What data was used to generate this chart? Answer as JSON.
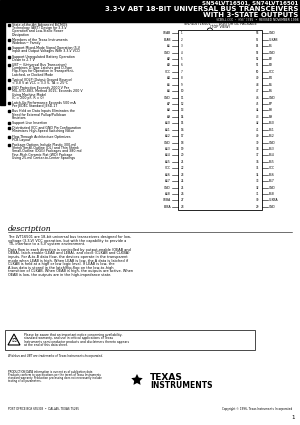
{
  "title_line1": "SN54LVT16501, SN74LVT16501",
  "title_line2": "3.3-V ABT 18-BIT UNIVERSAL BUS TRANSCEIVERS",
  "title_line3": "WITH 3-STATE OUTPUTS",
  "subtitle_small": "SCBS-LXXX  •  MAY 1995  •  REVISED NOVEMBER 1998",
  "pkg_line1": "SN54LVT16501 . . . WD PACKAGE",
  "pkg_line2": "SN74LVT16501 . . . DGG OR DL PACKAGE",
  "pkg_line3": "(TOP VIEW)",
  "left_pins": [
    "OEAB",
    "LEAB",
    "A1",
    "GND",
    "A2",
    "A3",
    "VCC",
    "A4",
    "A5",
    "A6",
    "GND",
    "A7",
    "A8",
    "A9",
    "A10",
    "A11",
    "A12",
    "GND",
    "A13",
    "A14",
    "A15",
    "VCC",
    "A16",
    "A17",
    "GND",
    "A18",
    "OEBA",
    "LEBA"
  ],
  "right_pins": [
    "GND",
    "CLKAB",
    "B1",
    "GND",
    "B2",
    "B3",
    "VCC",
    "B4",
    "B5",
    "B6",
    "GND",
    "B7",
    "B8",
    "B9",
    "B10",
    "B11",
    "B12",
    "GND",
    "B13",
    "B14",
    "B15",
    "VCC",
    "B16",
    "B17",
    "GND",
    "B18",
    "CLKBA",
    "GND"
  ],
  "left_nums": [
    1,
    2,
    3,
    4,
    5,
    6,
    7,
    8,
    9,
    10,
    11,
    12,
    13,
    14,
    15,
    16,
    17,
    18,
    19,
    20,
    21,
    22,
    23,
    24,
    25,
    26,
    27,
    28
  ],
  "right_nums": [
    56,
    55,
    54,
    53,
    52,
    51,
    50,
    49,
    48,
    47,
    46,
    45,
    44,
    43,
    42,
    41,
    40,
    39,
    38,
    37,
    36,
    35,
    34,
    33,
    32,
    31,
    30,
    29
  ],
  "bullet_points": [
    "State-of-the-Art Advanced BiCMOS\nTechnology (ABT) Design for 3.3-V\nOperation and Low-Static Power\nDissipation",
    "Members of the Texas Instruments\nWidebus™ Family",
    "Support Mixed-Mode Signal Operation (5-V\nInput and Output Voltages With 3.3-V VCC)",
    "Support Unregulated Battery Operation\nDown to 2.7 V",
    "UBT™ (Universal Bus Transceiver)\nCombines D-Type Latches and D-Type\nFlip-Flops for Operation in Transparent,\nLatched, or Clocked Mode",
    "Typical VOLP (Output Ground Bounce)\n< 0.8 V at VCC = 3.3 V, TA = 25°C",
    "ESD Protection Exceeds 2000 V Per\nMIL-STD-883, Method 3015; Exceeds 200 V\nUsing Machine Model\n(C = 200 pF, R = 0)",
    "Latch-Up Performance Exceeds 500 mA\nPer JEDEC Standard JESD-17",
    "Bus Hold on Data Inputs Eliminates the\nNeed for External Pullup/Pulldown\nResistors",
    "Support Live Insertion",
    "Distributed VCC and GND Pin Configuration\nMinimizes High-Speed Switching Noise",
    "Flow-Through Architecture Optimizes\nPCB Layout",
    "Package Options Include Plastic 300-mil\nShrink Small-Outline (DL) and Thin Shrink\nSmall-Outline (DGG) Packages and 380-mil\nFine-Pitch Ceramic Flat (WD) Package\nUsing 25-mil Center-to-Center Spacings"
  ],
  "desc_heading": "description",
  "desc_text1": "The LVT16501 are 18-bit universal bus transceivers designed for low-voltage (3.3-V) VCC operation, but with the capability to provide a TTL interface to a 5-V system environment.",
  "desc_text2": "Data flow in each direction is controlled by output-enable (OEAB and OEBA), latch-enable (LEAB and LEBA), and clock (CLKAB and CLKBA) inputs. For A-to-B data flow, the devices operate in the transparent mode when LEAB is high. When LEAB is low, the A data is latched if CLKAB is held at a high or low logic level. If LEAB is low, the A-bus data is stored in the latch/flip-flop on the low-to-high transition of CLKAB. When OEAB is high, the outputs are active. When OEAB is low, the outputs are in the high-impedance state.",
  "notice_text": "Please be aware that an important notice concerning availability, standard warranty, and use in critical applications of Texas Instruments semiconductor products and disclaimers thereto appears at the end of this data sheet.",
  "trademark_text": "Widebus and UBT are trademarks of Texas Instruments Incorporated.",
  "copyright_text": "Copyright © 1996, Texas Instruments Incorporated",
  "prod_texts": [
    "PRODUCTION DATA information is current as of publication date.",
    "Products conform to specifications per the terms of Texas Instruments",
    "standard warranty. Production processing does not necessarily include",
    "testing of all parameters."
  ],
  "bottom_address": "POST OFFICE BOX 655303  •  DALLAS, TEXAS 75265",
  "bg_color": "#ffffff"
}
